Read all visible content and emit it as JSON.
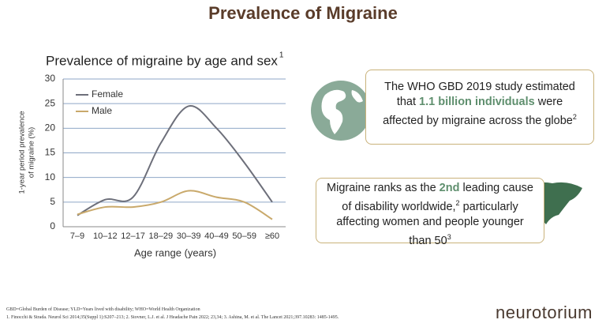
{
  "title": "Prevalence of Migraine",
  "chart_data": {
    "type": "line",
    "title": "Prevalence of migraine by age and sex",
    "title_ref": "1",
    "x_label": "Age range (years)",
    "y_label": [
      "1-year period prevalence",
      "of migraine (%)"
    ],
    "categories": [
      "7–9",
      "10–12",
      "12–17",
      "18–29",
      "30–39",
      "40–49",
      "50–59",
      "≥60"
    ],
    "series": [
      {
        "name": "Female",
        "color": "#6d6f7a",
        "values": [
          2.3,
          5.5,
          6,
          17,
          24.5,
          20,
          13,
          5
        ]
      },
      {
        "name": "Male",
        "color": "#c9a96b",
        "values": [
          2.5,
          4,
          4,
          5,
          7.3,
          6,
          5,
          1.5
        ]
      }
    ],
    "ylim": [
      0,
      30
    ],
    "yticks": [
      0,
      5,
      10,
      15,
      20,
      25,
      30
    ],
    "grid": true,
    "legend": "upper-left"
  },
  "callouts": [
    {
      "before": "The WHO GBD 2019 study estimated that",
      "highlight": "1.1 billion individuals",
      "after": "were affected by migraine across the globe",
      "ref": "2"
    },
    {
      "before": "Migraine ranks as the",
      "highlight": "2nd",
      "middle": "leading cause of disability worldwide,",
      "ref": "2",
      "after": "particularly affecting women and people younger than 50",
      "ref2": "3"
    }
  ],
  "footnotes": [
    "GBD=Global Burden of Disease; YLD=Years lived with disability; WHO=World Health Organization",
    "1. Finocchi & Strada. Neurol Sci 2014;35(Suppl 1):S207–213; 2. Stovner, L.J. et al. J Headache Pain 2022; 23,34; 3. Ashina, M. et al. The Lancet 2021;397.10283: 1485-1495."
  ],
  "logo": "neurotorium"
}
